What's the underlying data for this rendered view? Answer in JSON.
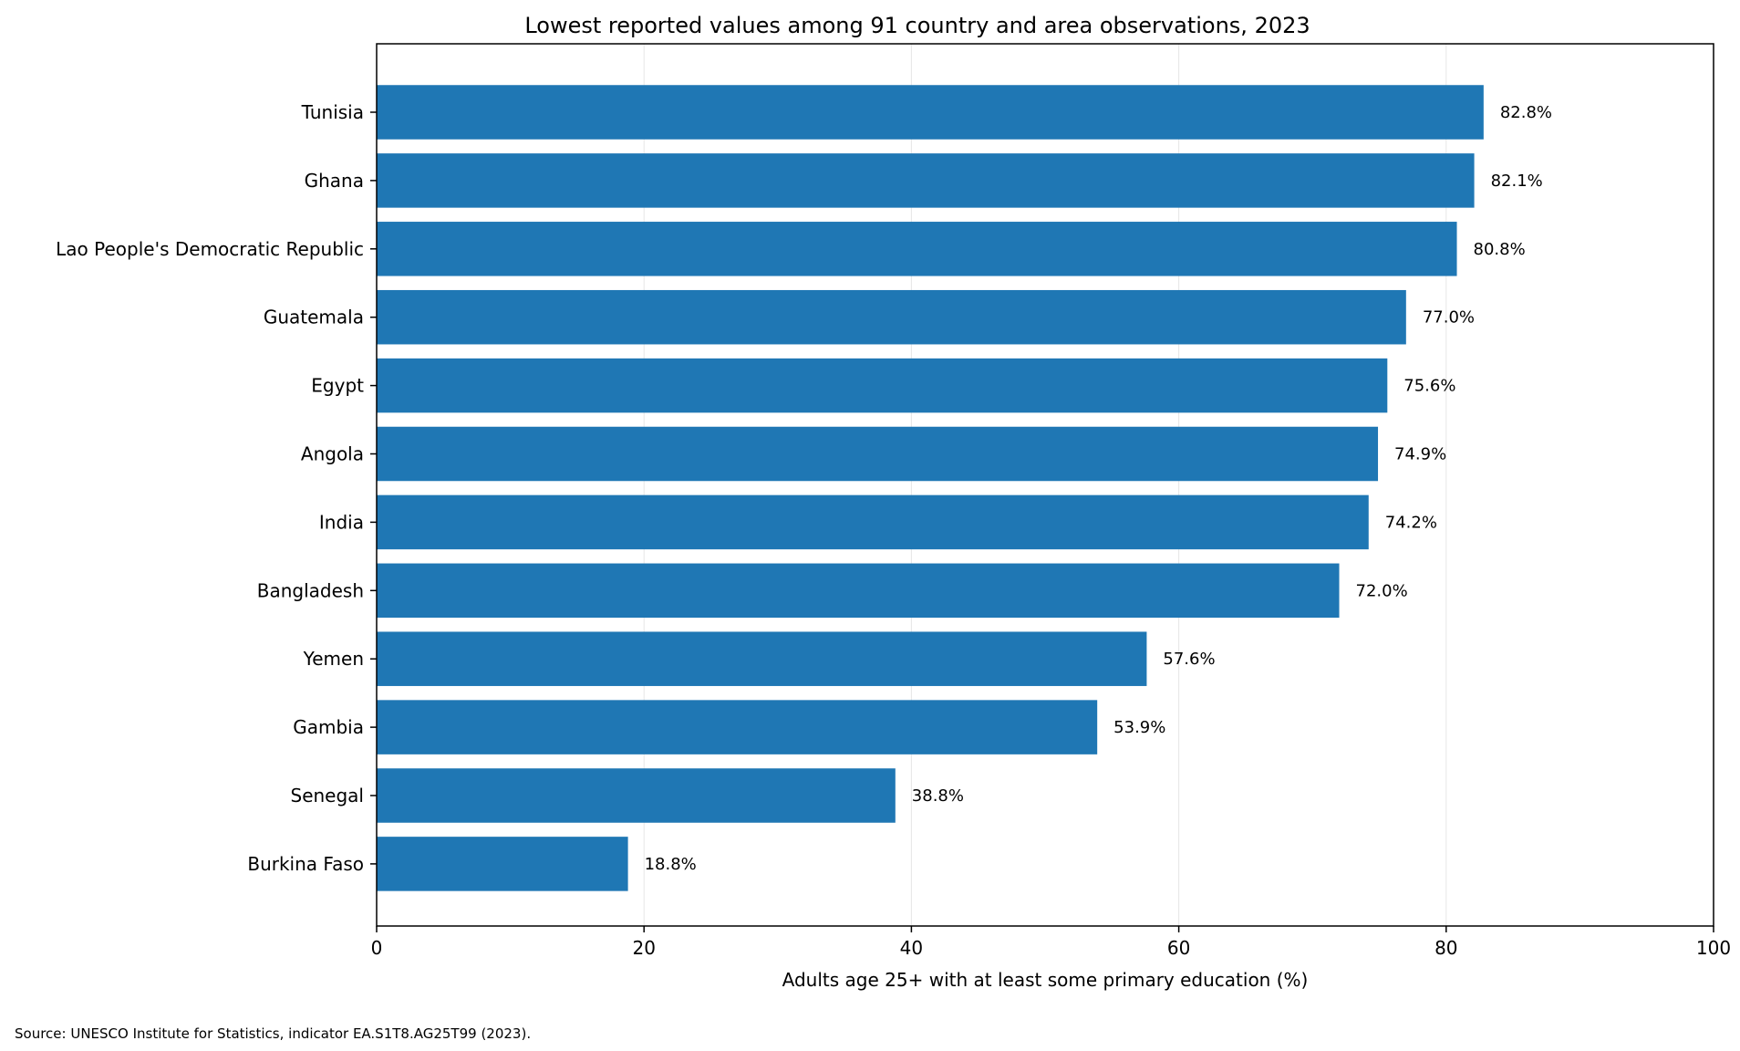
{
  "chart_data": {
    "type": "bar",
    "orientation": "horizontal",
    "title": "Lowest reported values among 91 country and area observations, 2023",
    "xlabel": "Adults age 25+ with at least some primary education (%)",
    "ylabel": "",
    "xlim": [
      0,
      100
    ],
    "xticks": [
      0,
      20,
      40,
      60,
      80,
      100
    ],
    "grid": "vertical",
    "bar_color": "#1f77b4",
    "categories": [
      "Tunisia",
      "Ghana",
      "Lao People's Democratic Republic",
      "Guatemala",
      "Egypt",
      "Angola",
      "India",
      "Bangladesh",
      "Yemen",
      "Gambia",
      "Senegal",
      "Burkina Faso"
    ],
    "values": [
      82.8,
      82.1,
      80.8,
      77.0,
      75.6,
      74.9,
      74.2,
      72.0,
      57.6,
      53.9,
      38.8,
      18.8
    ],
    "value_labels": [
      "82.8%",
      "82.1%",
      "80.8%",
      "77.0%",
      "75.6%",
      "74.9%",
      "74.2%",
      "72.0%",
      "57.6%",
      "53.9%",
      "38.8%",
      "18.8%"
    ],
    "source": "Source: UNESCO Institute for Statistics, indicator EA.S1T8.AG25T99 (2023)."
  }
}
